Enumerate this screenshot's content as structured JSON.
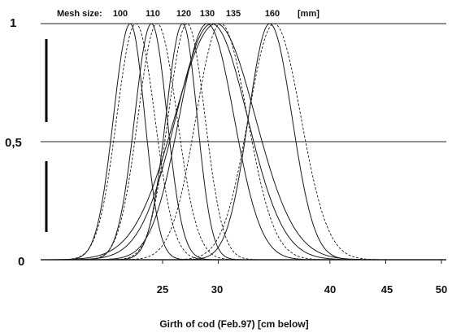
{
  "chart_data": {
    "type": "line",
    "title": "",
    "xlabel": "Girth of cod (Feb.97) [cm below]",
    "ylabel": "",
    "legend_title": "Mesh size:",
    "legend_unit": "[mm]",
    "xlim": [
      15,
      50
    ],
    "ylim": [
      0,
      1
    ],
    "x_ticks": [
      25,
      30,
      40,
      45,
      50
    ],
    "x_tick_labels": [
      "25",
      "30",
      "40",
      "45",
      "50"
    ],
    "y_ticks": [
      0,
      0.5,
      1
    ],
    "y_tick_labels": [
      "0",
      "0,5",
      "1"
    ],
    "grid": "horizontal",
    "series": [
      {
        "name": "100",
        "peak_x": 22.1,
        "left_width": 1.5,
        "right_width": 1.3,
        "style": "solid"
      },
      {
        "name": "100",
        "peak_x": 22.6,
        "left_width": 1.7,
        "right_width": 1.7,
        "style": "dashed"
      },
      {
        "name": "110",
        "peak_x": 24.0,
        "left_width": 1.5,
        "right_width": 1.4,
        "style": "solid"
      },
      {
        "name": "110",
        "peak_x": 24.5,
        "left_width": 1.7,
        "right_width": 1.8,
        "style": "dashed"
      },
      {
        "name": "120",
        "peak_x": 26.8,
        "left_width": 1.5,
        "right_width": 1.3,
        "style": "solid"
      },
      {
        "name": "120",
        "peak_x": 27.2,
        "left_width": 1.7,
        "right_width": 1.6,
        "style": "dashed"
      },
      {
        "name": "130",
        "peak_x": 29.0,
        "left_width": 2.5,
        "right_width": 2.4,
        "style": "solid"
      },
      {
        "name": "130",
        "peak_x": 29.4,
        "left_width": 3.2,
        "right_width": 3.2,
        "style": "solid"
      },
      {
        "name": "135",
        "peak_x": 29.8,
        "left_width": 3.7,
        "right_width": 3.5,
        "style": "solid"
      },
      {
        "name": "135",
        "peak_x": 30.2,
        "left_width": 2.2,
        "right_width": 2.4,
        "style": "dashed"
      },
      {
        "name": "160",
        "peak_x": 34.6,
        "left_width": 1.9,
        "right_width": 2.0,
        "style": "solid"
      },
      {
        "name": "160",
        "peak_x": 35.0,
        "left_width": 2.3,
        "right_width": 2.4,
        "style": "dashed"
      }
    ],
    "mesh_labels": [
      "100",
      "110",
      "120",
      "130",
      "135",
      "160"
    ]
  }
}
